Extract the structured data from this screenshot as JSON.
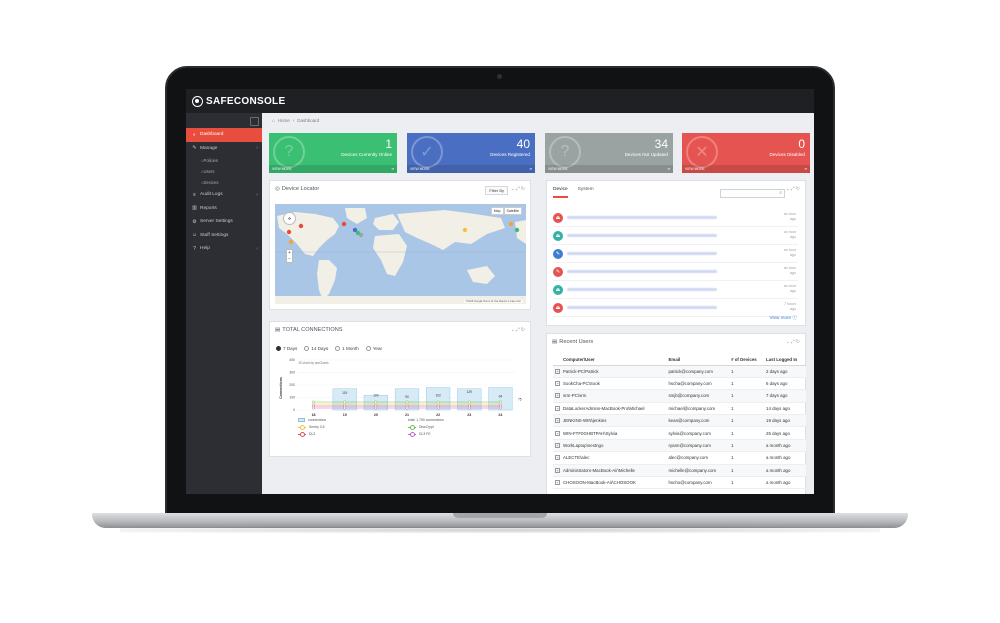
{
  "app": {
    "logo_text": "SAFECONSOLE"
  },
  "breadcrumb": {
    "home": "Home",
    "separator": "›",
    "current": "Dashboard"
  },
  "sidebar": {
    "items": [
      {
        "label": "Dashboard",
        "icon": "dashboard-icon",
        "active": true
      },
      {
        "label": "Manage",
        "icon": "wrench-icon"
      },
      {
        "label": "Policies",
        "sub": true
      },
      {
        "label": "Users",
        "sub": true
      },
      {
        "label": "Devices",
        "sub": true
      },
      {
        "label": "Audit Logs",
        "icon": "list-icon"
      },
      {
        "label": "Reports",
        "icon": "chart-icon"
      },
      {
        "label": "Server Settings",
        "icon": "sliders-icon"
      },
      {
        "label": "Staff Settings",
        "icon": "people-icon"
      },
      {
        "label": "Help",
        "icon": "help-icon"
      }
    ]
  },
  "stats": [
    {
      "value": "1",
      "label": "Devices Currently Online",
      "more": "VIEW MORE",
      "color": "#3bbf73",
      "icon": "info-icon"
    },
    {
      "value": "40",
      "label": "Devices Registered",
      "more": "VIEW MORE",
      "color": "#4a6fc2",
      "icon": "check-icon"
    },
    {
      "value": "34",
      "label": "Devices Not Updated",
      "more": "VIEW MORE",
      "color": "#9aa3a1",
      "icon": "question-icon"
    },
    {
      "value": "0",
      "label": "Devices Disabled",
      "more": "VIEW MORE",
      "color": "#e55450",
      "icon": "x-icon"
    }
  ],
  "device_locator": {
    "title": "Device Locator",
    "filter_label": "Filter By",
    "map_button": "Map",
    "satellite_button": "Satellite",
    "attribution": "©2016 Google  Terms of Use  Report a map error"
  },
  "activity": {
    "tabs": [
      "Device",
      "System"
    ],
    "items": [
      {
        "color": "#e55450",
        "time": "an hour ago"
      },
      {
        "color": "#32b3a5",
        "time": "an hour ago"
      },
      {
        "color": "#3c7fd1",
        "time": "an hour ago"
      },
      {
        "color": "#e55450",
        "time": "an hour ago"
      },
      {
        "color": "#32b3a5",
        "time": "an hour ago"
      },
      {
        "color": "#e55450",
        "time": "7 hours ago"
      }
    ],
    "view_more": "View more"
  },
  "connections": {
    "title": "TOTAL CONNECTIONS",
    "ranges": [
      "7 Days",
      "14 Days",
      "1 Month",
      "Year"
    ],
    "selected_range": "7 Days"
  },
  "chart_data": {
    "type": "bar",
    "ylabel": "Connections",
    "ylim": [
      0,
      400
    ],
    "yticks": [
      0,
      100,
      200,
      300,
      400
    ],
    "categories": [
      "18",
      "19",
      "20",
      "21",
      "22",
      "23",
      "24"
    ],
    "caption": "JS chart by amCharts",
    "series": [
      {
        "name": "connections",
        "type": "bar",
        "values": [
          null,
          119,
          100,
          90,
          102,
          129,
          94
        ]
      },
      {
        "name": "Sentry 3.6",
        "type": "line",
        "color": "#f4c23e"
      },
      {
        "name": "DiscCrypt",
        "type": "line",
        "color": "#6cbf55"
      },
      {
        "name": "DL3",
        "type": "line",
        "color": "#e14f4f"
      },
      {
        "name": "DL3 FE",
        "type": "line",
        "color": "#b569c9"
      }
    ],
    "trailing_label": "75",
    "total_label": "total: 1,750 connections"
  },
  "recent_users": {
    "title": "Recent Users",
    "columns": [
      "Computer\\User",
      "Email",
      "# of Devices",
      "Last Logged In"
    ],
    "rows": [
      [
        "Patrick-PC\\Patrick",
        "patrick@company.com",
        "1",
        "2 days ago"
      ],
      [
        "SookCha-PC\\Sook",
        "hscha@company.com",
        "1",
        "6 days ago"
      ],
      [
        "srm-PC\\srm",
        "smjb@company.com",
        "1",
        "7 days ago"
      ],
      [
        "DataLockerAdmins-MacBook-Pro\\Michael",
        "michael@company.com",
        "1",
        "14 days ago"
      ],
      [
        "JENKINS-WIN\\jenkins",
        "kean@company.com",
        "1",
        "19 days ago"
      ],
      [
        "WIN-FTF0GHBTPAH\\Sylvia",
        "sylvia@company.com",
        "1",
        "25 days ago"
      ],
      [
        "WorkLaptop\\nestngo",
        "ryann@company.com",
        "1",
        "a month ago"
      ],
      [
        "ALECTE\\alec",
        "alec@company.com",
        "1",
        "a month ago"
      ],
      [
        "Administrators-MacBook-Air\\Michelle",
        "michelle@company.com",
        "1",
        "a month ago"
      ],
      [
        "CHOSOON-MacBook-Air\\CHOSOOK",
        "hscho@company.com",
        "1",
        "a month ago"
      ]
    ]
  }
}
